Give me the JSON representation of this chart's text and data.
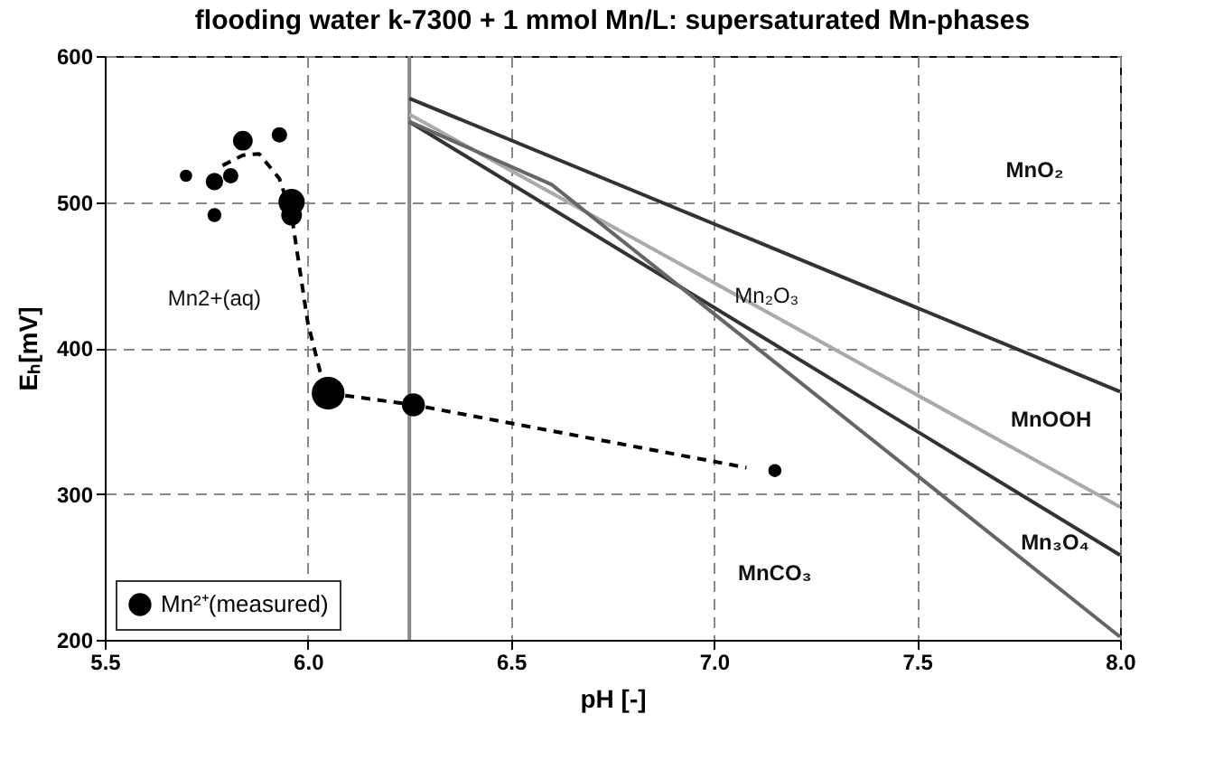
{
  "chart_data": {
    "type": "line",
    "title": "flooding water k-7300 + 1 mmol Mn/L: supersaturated Mn-phases",
    "xlabel": "pH [-]",
    "ylabel": "Eₕ[mV]",
    "xlim": [
      5.5,
      8.0
    ],
    "ylim": [
      200,
      600
    ],
    "xticks": [
      5.5,
      {
        "value": 6,
        "label": "6.0"
      },
      6.5,
      {
        "value": 7,
        "label": "7.0"
      },
      7.5,
      {
        "value": 8,
        "label": "8.0"
      }
    ],
    "yticks": [
      200,
      300,
      400,
      500,
      600
    ],
    "grid": true,
    "legend": "bottom left",
    "series": [
      {
        "type": "bubble",
        "name": "Mn²⁺(measured)",
        "color": "#000000",
        "x": [
          5.7,
          5.77,
          5.77,
          5.81,
          5.84,
          5.93,
          5.96,
          5.96,
          6.05,
          6.26,
          7.15
        ],
        "values": [
          518,
          514,
          491,
          518,
          542,
          546,
          500,
          491,
          369,
          361,
          316
        ],
        "sizes": [
          0.14,
          0.28,
          0.18,
          0.22,
          0.36,
          0.22,
          0.64,
          0.4,
          1,
          0.49,
          0.16
        ]
      },
      {
        "color": "#000000",
        "line_style": "dashed",
        "x": [
          5.79,
          5.84,
          5.88,
          5.93,
          5.96,
          6.0,
          6.03,
          6.05,
          6.26,
          7.08
        ],
        "values": [
          525,
          532,
          533,
          516,
          491,
          417,
          384,
          369,
          361,
          318
        ]
      },
      {
        "color": "#888888",
        "line_style": "solid",
        "x": [
          6.25,
          6.25
        ],
        "values": [
          200,
          600
        ]
      },
      {
        "color": "#333333",
        "line_style": "solid",
        "x": [
          6.25,
          7.0,
          8.0
        ],
        "values": [
          571,
          485,
          370
        ]
      },
      {
        "color": "#aaaaaa",
        "line_style": "solid",
        "x": [
          6.25,
          8.0
        ],
        "values": [
          560,
          291
        ]
      },
      {
        "color": "#333333",
        "line_style": "solid",
        "x": [
          6.25,
          8.0
        ],
        "values": [
          555,
          258
        ]
      },
      {
        "color": "#666666",
        "line_style": "solid",
        "x": [
          6.25,
          6.6,
          8.0
        ],
        "values": [
          555,
          512,
          202
        ]
      }
    ],
    "annotations": [
      "MnO₂",
      "MnOOH",
      "Mn₃O₄",
      "MnCO₃",
      "Mn₂O₃",
      "Mn2+(aq)"
    ]
  }
}
